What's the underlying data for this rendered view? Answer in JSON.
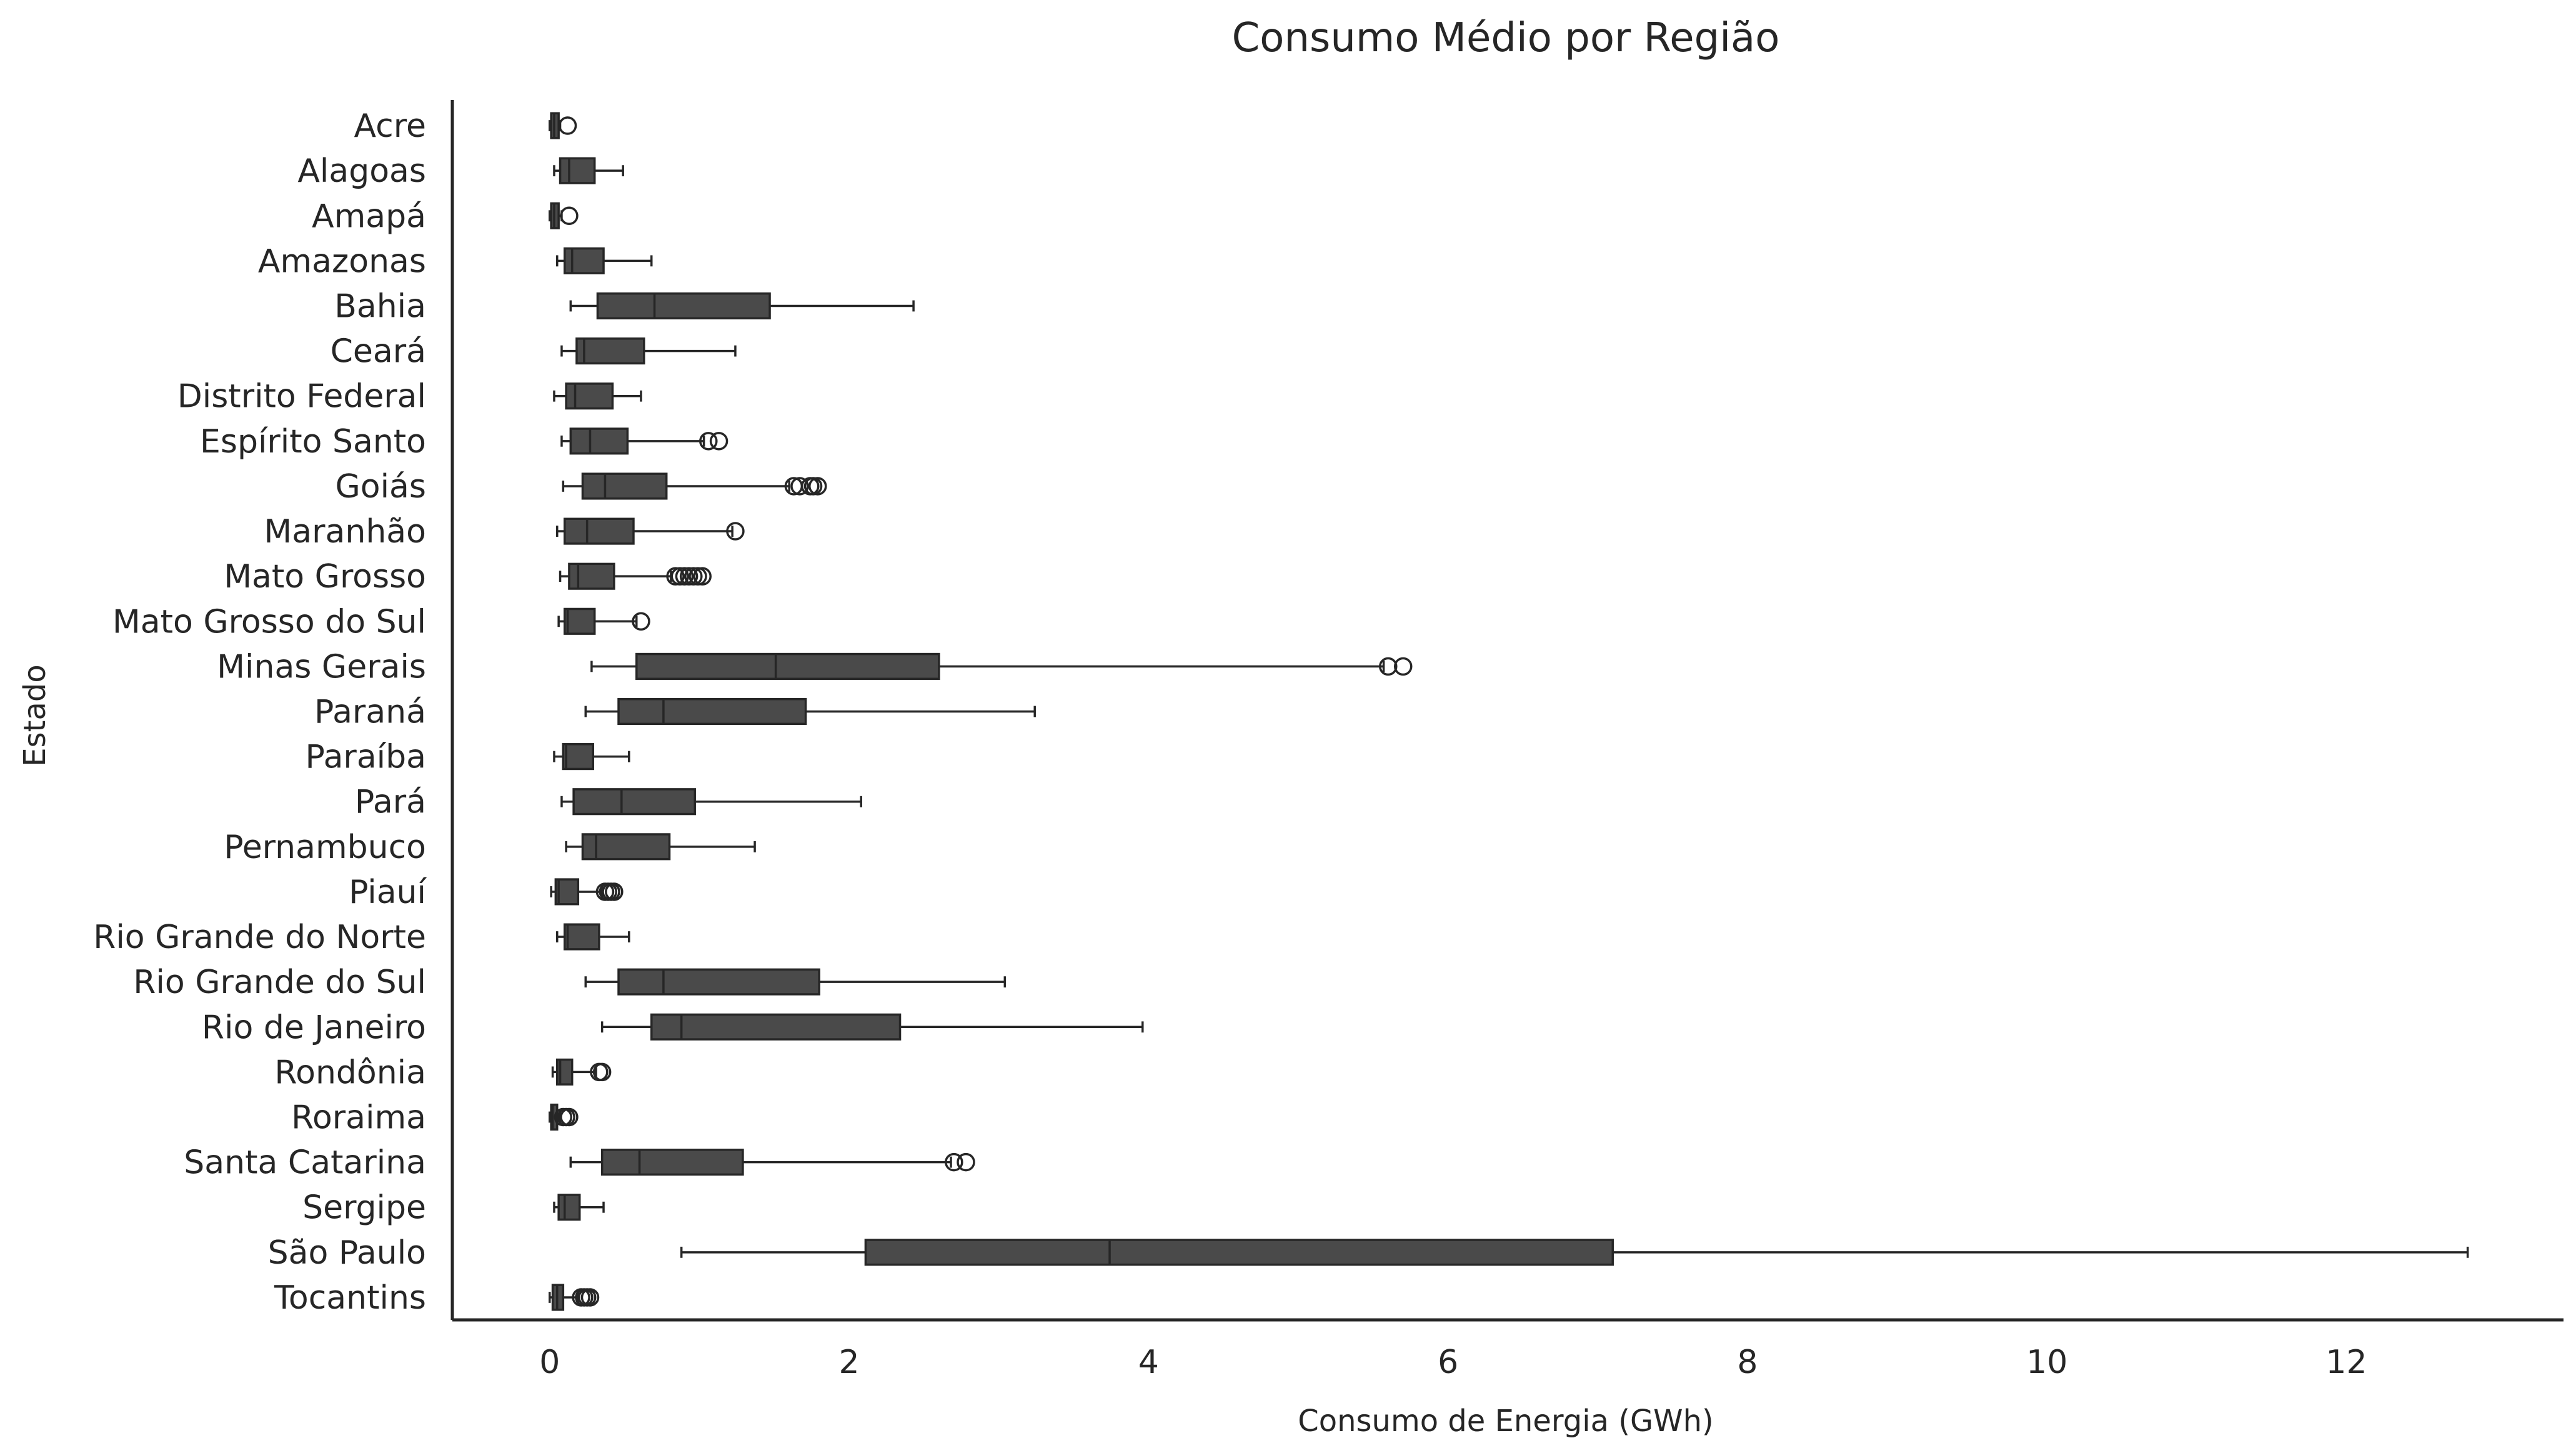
{
  "chart_data": {
    "type": "boxplot",
    "orientation": "horizontal",
    "title": "Consumo Médio por Região",
    "xlabel": "Consumo de Energia (GWh)",
    "ylabel": "Estado",
    "xlim": [
      -0.65,
      13.45
    ],
    "xticks": [
      0,
      2,
      4,
      6,
      8,
      10,
      12
    ],
    "grid": false,
    "box_color": "#4a4a4a",
    "line_color": "#262626",
    "categories": [
      "Acre",
      "Alagoas",
      "Amapá",
      "Amazonas",
      "Bahia",
      "Ceará",
      "Distrito Federal",
      "Espírito Santo",
      "Goiás",
      "Maranhão",
      "Mato Grosso",
      "Mato Grosso do Sul",
      "Minas Gerais",
      "Paraná",
      "Paraíba",
      "Pará",
      "Pernambuco",
      "Piauí",
      "Rio Grande do Norte",
      "Rio Grande do Sul",
      "Rio de Janeiro",
      "Rondônia",
      "Roraima",
      "Santa Catarina",
      "Sergipe",
      "São Paulo",
      "Tocantins"
    ],
    "series": [
      {
        "category": "Acre",
        "whisker_low": 0.0,
        "q1": 0.01,
        "median": 0.03,
        "q3": 0.06,
        "whisker_high": 0.07,
        "outliers": [
          0.12
        ]
      },
      {
        "category": "Alagoas",
        "whisker_low": 0.03,
        "q1": 0.07,
        "median": 0.13,
        "q3": 0.3,
        "whisker_high": 0.49,
        "outliers": []
      },
      {
        "category": "Amapá",
        "whisker_low": 0.0,
        "q1": 0.01,
        "median": 0.03,
        "q3": 0.06,
        "whisker_high": 0.08,
        "outliers": [
          0.13
        ]
      },
      {
        "category": "Amazonas",
        "whisker_low": 0.05,
        "q1": 0.1,
        "median": 0.15,
        "q3": 0.36,
        "whisker_high": 0.68,
        "outliers": []
      },
      {
        "category": "Bahia",
        "whisker_low": 0.14,
        "q1": 0.32,
        "median": 0.7,
        "q3": 1.47,
        "whisker_high": 2.43,
        "outliers": []
      },
      {
        "category": "Ceará",
        "whisker_low": 0.08,
        "q1": 0.18,
        "median": 0.23,
        "q3": 0.63,
        "whisker_high": 1.24,
        "outliers": []
      },
      {
        "category": "Distrito Federal",
        "whisker_low": 0.03,
        "q1": 0.11,
        "median": 0.17,
        "q3": 0.42,
        "whisker_high": 0.61,
        "outliers": []
      },
      {
        "category": "Espírito Santo",
        "whisker_low": 0.08,
        "q1": 0.14,
        "median": 0.27,
        "q3": 0.52,
        "whisker_high": 1.03,
        "outliers": [
          1.06,
          1.13
        ]
      },
      {
        "category": "Goiás",
        "whisker_low": 0.09,
        "q1": 0.22,
        "median": 0.37,
        "q3": 0.78,
        "whisker_high": 1.6,
        "outliers": [
          1.63,
          1.67,
          1.74,
          1.76,
          1.79
        ]
      },
      {
        "category": "Maranhão",
        "whisker_low": 0.05,
        "q1": 0.1,
        "median": 0.25,
        "q3": 0.56,
        "whisker_high": 1.22,
        "outliers": [
          1.24
        ]
      },
      {
        "category": "Mato Grosso",
        "whisker_low": 0.07,
        "q1": 0.13,
        "median": 0.19,
        "q3": 0.43,
        "whisker_high": 0.81,
        "outliers": [
          0.84,
          0.87,
          0.9,
          0.93,
          0.96,
          0.99,
          1.02
        ]
      },
      {
        "category": "Mato Grosso do Sul",
        "whisker_low": 0.06,
        "q1": 0.1,
        "median": 0.12,
        "q3": 0.3,
        "whisker_high": 0.58,
        "outliers": [
          0.61
        ]
      },
      {
        "category": "Minas Gerais",
        "whisker_low": 0.28,
        "q1": 0.58,
        "median": 1.51,
        "q3": 2.6,
        "whisker_high": 5.57,
        "outliers": [
          5.6,
          5.7
        ]
      },
      {
        "category": "Paraná",
        "whisker_low": 0.24,
        "q1": 0.46,
        "median": 0.76,
        "q3": 1.71,
        "whisker_high": 3.24,
        "outliers": []
      },
      {
        "category": "Paraíba",
        "whisker_low": 0.03,
        "q1": 0.09,
        "median": 0.11,
        "q3": 0.29,
        "whisker_high": 0.53,
        "outliers": []
      },
      {
        "category": "Pará",
        "whisker_low": 0.08,
        "q1": 0.16,
        "median": 0.48,
        "q3": 0.97,
        "whisker_high": 2.08,
        "outliers": []
      },
      {
        "category": "Pernambuco",
        "whisker_low": 0.11,
        "q1": 0.22,
        "median": 0.31,
        "q3": 0.8,
        "whisker_high": 1.37,
        "outliers": []
      },
      {
        "category": "Piauí",
        "whisker_low": 0.01,
        "q1": 0.04,
        "median": 0.06,
        "q3": 0.19,
        "whisker_high": 0.35,
        "outliers": [
          0.37,
          0.39,
          0.41,
          0.43
        ]
      },
      {
        "category": "Rio Grande do Norte",
        "whisker_low": 0.05,
        "q1": 0.1,
        "median": 0.12,
        "q3": 0.33,
        "whisker_high": 0.53,
        "outliers": []
      },
      {
        "category": "Rio Grande do Sul",
        "whisker_low": 0.24,
        "q1": 0.46,
        "median": 0.76,
        "q3": 1.8,
        "whisker_high": 3.04,
        "outliers": []
      },
      {
        "category": "Rio de Janeiro",
        "whisker_low": 0.35,
        "q1": 0.68,
        "median": 0.88,
        "q3": 2.34,
        "whisker_high": 3.96,
        "outliers": []
      },
      {
        "category": "Rondônia",
        "whisker_low": 0.02,
        "q1": 0.05,
        "median": 0.07,
        "q3": 0.15,
        "whisker_high": 0.31,
        "outliers": [
          0.33,
          0.35
        ]
      },
      {
        "category": "Roraima",
        "whisker_low": 0.0,
        "q1": 0.01,
        "median": 0.02,
        "q3": 0.05,
        "whisker_high": 0.07,
        "outliers": [
          0.09,
          0.11,
          0.13
        ]
      },
      {
        "category": "Santa Catarina",
        "whisker_low": 0.14,
        "q1": 0.35,
        "median": 0.6,
        "q3": 1.29,
        "whisker_high": 2.68,
        "outliers": [
          2.7,
          2.78
        ]
      },
      {
        "category": "Sergipe",
        "whisker_low": 0.03,
        "q1": 0.06,
        "median": 0.1,
        "q3": 0.2,
        "whisker_high": 0.36,
        "outliers": []
      },
      {
        "category": "São Paulo",
        "whisker_low": 0.88,
        "q1": 2.11,
        "median": 3.74,
        "q3": 7.1,
        "whisker_high": 12.81,
        "outliers": []
      },
      {
        "category": "Tocantins",
        "whisker_low": 0.0,
        "q1": 0.02,
        "median": 0.05,
        "q3": 0.09,
        "whisker_high": 0.19,
        "outliers": [
          0.21,
          0.23,
          0.25,
          0.27
        ]
      }
    ]
  }
}
